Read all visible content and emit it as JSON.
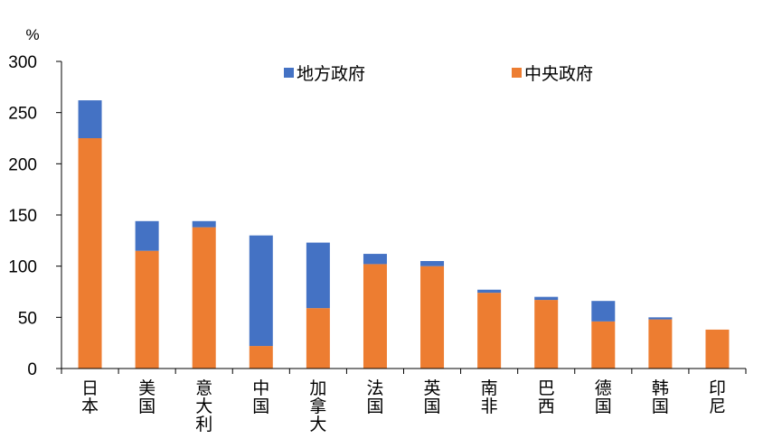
{
  "chart_data": {
    "type": "bar",
    "stacked": true,
    "title": "",
    "xlabel": "",
    "ylabel": "%",
    "ylim": [
      0,
      300
    ],
    "yticks": [
      0,
      50,
      100,
      150,
      200,
      250,
      300
    ],
    "categories": [
      "日本",
      "美国",
      "意大利",
      "中国",
      "加拿大",
      "法国",
      "英国",
      "南非",
      "巴西",
      "德国",
      "韩国",
      "印尼"
    ],
    "series": [
      {
        "name": "中央政府",
        "color": "#ED7D31",
        "values": [
          225,
          115,
          138,
          22,
          59,
          102,
          100,
          74,
          67,
          46,
          48,
          38
        ]
      },
      {
        "name": "地方政府",
        "color": "#4472C4",
        "values": [
          37,
          29,
          6,
          108,
          64,
          10,
          5,
          3,
          3,
          20,
          2,
          0
        ]
      }
    ],
    "legend": {
      "placement": "top",
      "order": [
        "地方政府",
        "中央政府"
      ]
    }
  }
}
